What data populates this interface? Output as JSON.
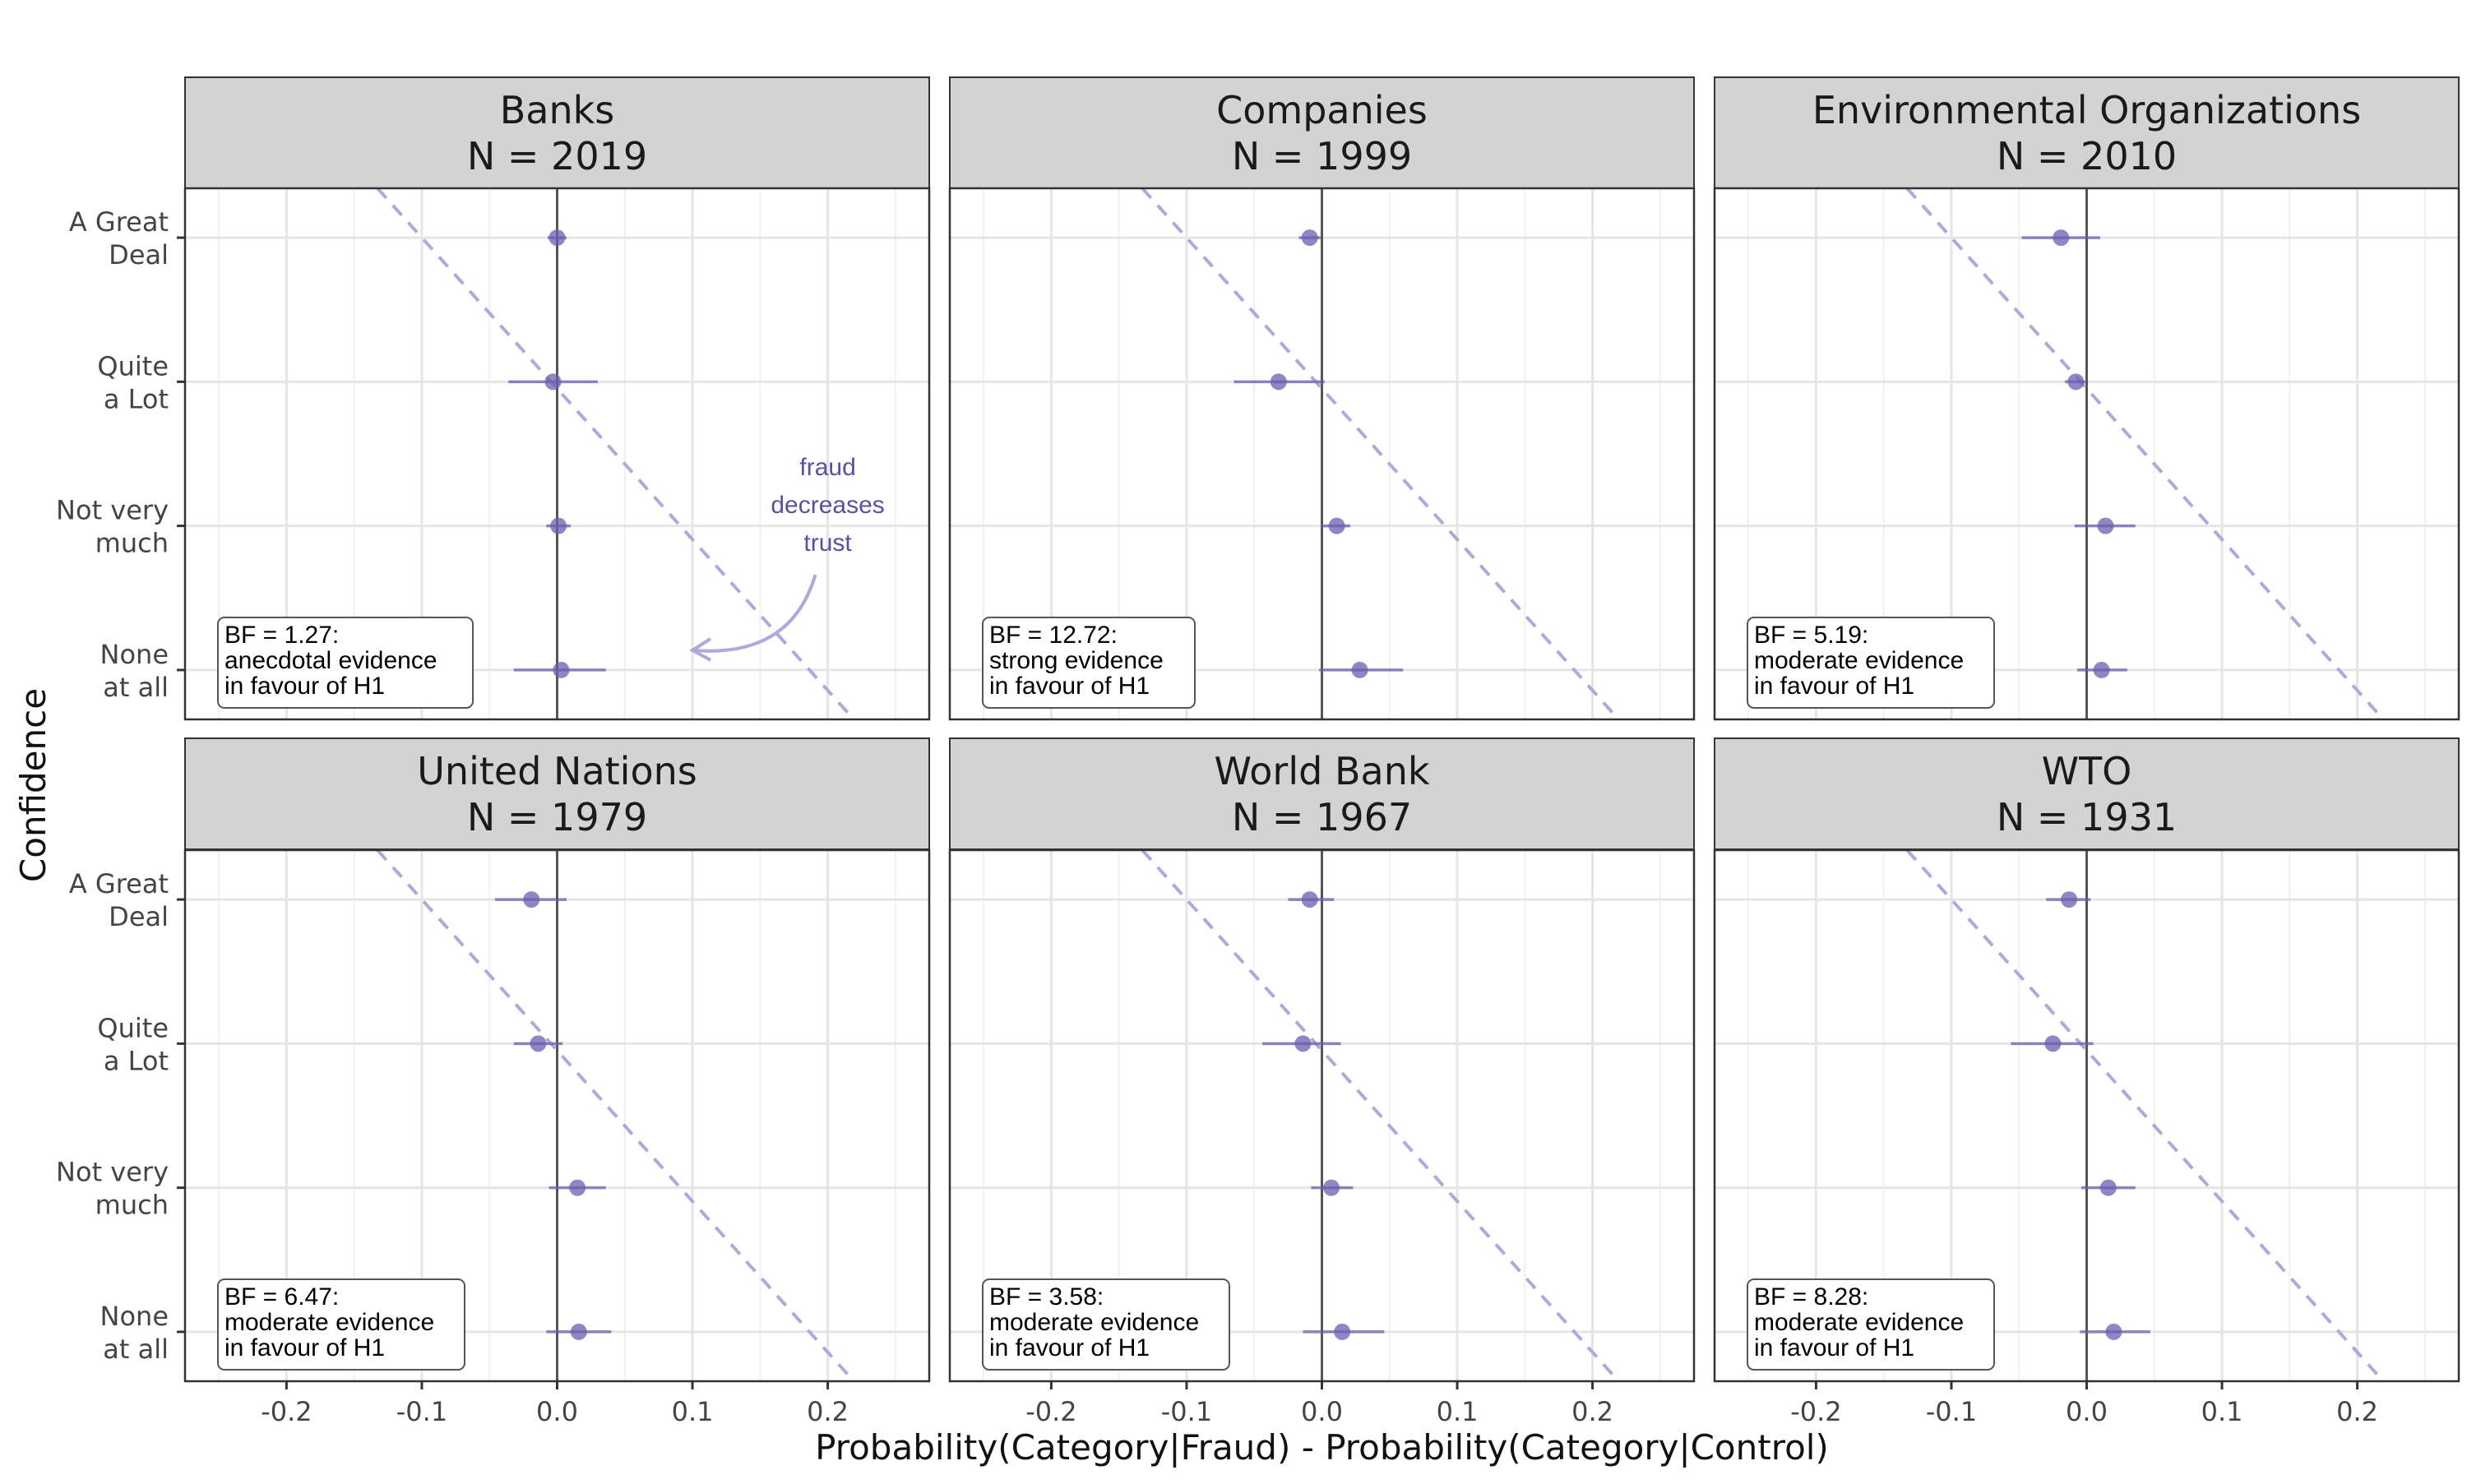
{
  "chart_data": {
    "type": "scatter",
    "xlabel": "Probability(Category|Fraud) - Probability(Category|Control)",
    "ylabel": "Confidence",
    "xlim": [
      -0.275,
      0.275
    ],
    "x_ticks": [
      "-0.2",
      "-0.1",
      "0.0",
      "0.1",
      "0.2"
    ],
    "x_tick_values": [
      -0.2,
      -0.1,
      0.0,
      0.1,
      0.2
    ],
    "categories": [
      "A Great Deal",
      "Quite a Lot",
      "Not very much",
      "None at all"
    ],
    "category_labels": [
      [
        "A Great",
        "Deal"
      ],
      [
        "Quite",
        "a Lot"
      ],
      [
        "Not very",
        "much"
      ],
      [
        "None",
        "at all"
      ]
    ],
    "reference_line": {
      "style": "dashed",
      "slope_per_category": 0.0955,
      "x_at_first_category": -0.1
    },
    "colors": {
      "point": "#6a5fb0",
      "dashed_line": "#b0a8dd",
      "strip_background": "#d3d3d3",
      "zero_line": "#555555",
      "grid": "#e5e5e5"
    },
    "annotation": {
      "panel": 0,
      "lines": [
        "fraud",
        "decreases",
        "trust"
      ]
    },
    "panels": [
      {
        "title": "Banks",
        "n_label": "N = 2019",
        "points": [
          {
            "category": "A Great Deal",
            "x": 0.0,
            "lo": -0.007,
            "hi": 0.007
          },
          {
            "category": "Quite a Lot",
            "x": -0.003,
            "lo": -0.036,
            "hi": 0.03
          },
          {
            "category": "Not very much",
            "x": 0.001,
            "lo": -0.008,
            "hi": 0.01
          },
          {
            "category": "None at all",
            "x": 0.003,
            "lo": -0.032,
            "hi": 0.036
          }
        ],
        "bf_lines": [
          "BF = 1.27:",
          "anecdotal evidence",
          "in favour of H1"
        ]
      },
      {
        "title": "Companies",
        "n_label": "N = 1999",
        "points": [
          {
            "category": "A Great Deal",
            "x": -0.009,
            "lo": -0.017,
            "hi": -0.001
          },
          {
            "category": "Quite a Lot",
            "x": -0.032,
            "lo": -0.065,
            "hi": 0.002
          },
          {
            "category": "Not very much",
            "x": 0.011,
            "lo": 0.0,
            "hi": 0.021
          },
          {
            "category": "None at all",
            "x": 0.028,
            "lo": -0.002,
            "hi": 0.06
          }
        ],
        "bf_lines": [
          "BF = 12.72:",
          "strong evidence",
          "in favour of H1"
        ]
      },
      {
        "title": "Environmental Organizations",
        "n_label": "N = 2010",
        "points": [
          {
            "category": "A Great Deal",
            "x": -0.019,
            "lo": -0.048,
            "hi": 0.01
          },
          {
            "category": "Quite a Lot",
            "x": -0.008,
            "lo": -0.016,
            "hi": 0.0
          },
          {
            "category": "Not very much",
            "x": 0.014,
            "lo": -0.009,
            "hi": 0.036
          },
          {
            "category": "None at all",
            "x": 0.011,
            "lo": -0.007,
            "hi": 0.03
          }
        ],
        "bf_lines": [
          "BF = 5.19:",
          "moderate evidence",
          "in favour of H1"
        ]
      },
      {
        "title": "United Nations",
        "n_label": "N = 1979",
        "points": [
          {
            "category": "A Great Deal",
            "x": -0.019,
            "lo": -0.046,
            "hi": 0.007
          },
          {
            "category": "Quite a Lot",
            "x": -0.014,
            "lo": -0.032,
            "hi": 0.004
          },
          {
            "category": "Not very much",
            "x": 0.015,
            "lo": -0.006,
            "hi": 0.036
          },
          {
            "category": "None at all",
            "x": 0.016,
            "lo": -0.008,
            "hi": 0.04
          }
        ],
        "bf_lines": [
          "BF = 6.47:",
          "moderate evidence",
          "in favour of H1"
        ]
      },
      {
        "title": "World Bank",
        "n_label": "N = 1967",
        "points": [
          {
            "category": "A Great Deal",
            "x": -0.009,
            "lo": -0.025,
            "hi": 0.009
          },
          {
            "category": "Quite a Lot",
            "x": -0.014,
            "lo": -0.044,
            "hi": 0.014
          },
          {
            "category": "Not very much",
            "x": 0.007,
            "lo": -0.008,
            "hi": 0.023
          },
          {
            "category": "None at all",
            "x": 0.015,
            "lo": -0.014,
            "hi": 0.046
          }
        ],
        "bf_lines": [
          "BF = 3.58:",
          "moderate evidence",
          "in favour of H1"
        ]
      },
      {
        "title": "WTO",
        "n_label": "N = 1931",
        "points": [
          {
            "category": "A Great Deal",
            "x": -0.013,
            "lo": -0.03,
            "hi": 0.003
          },
          {
            "category": "Quite a Lot",
            "x": -0.025,
            "lo": -0.056,
            "hi": 0.005
          },
          {
            "category": "Not very much",
            "x": 0.016,
            "lo": -0.004,
            "hi": 0.036
          },
          {
            "category": "None at all",
            "x": 0.02,
            "lo": -0.005,
            "hi": 0.047
          }
        ],
        "bf_lines": [
          "BF = 8.28:",
          "moderate evidence",
          "in favour of H1"
        ]
      }
    ]
  }
}
